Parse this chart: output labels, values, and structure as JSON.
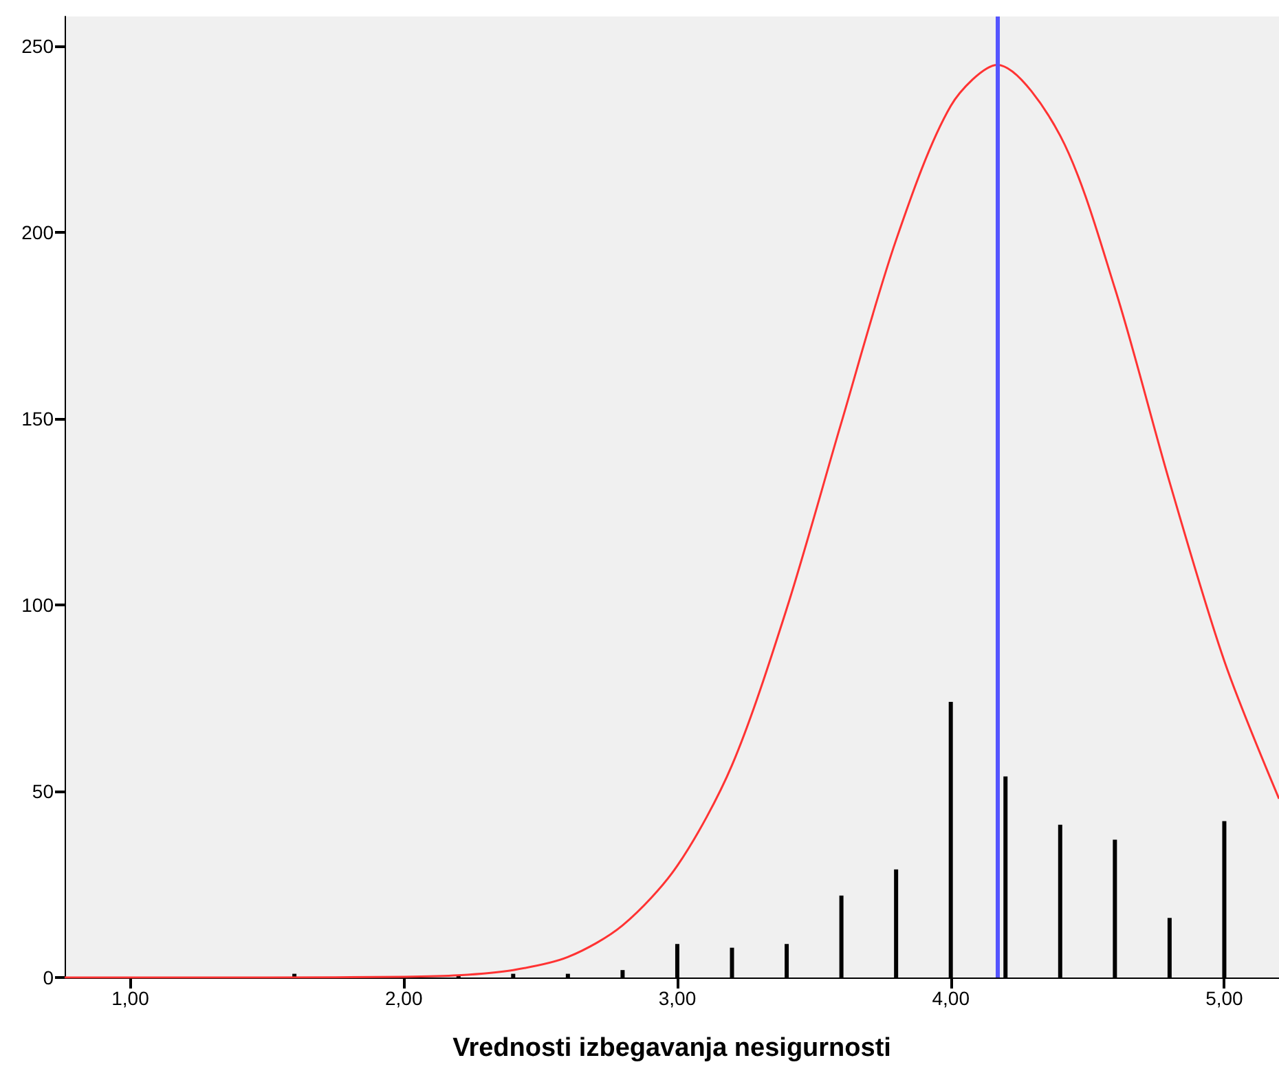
{
  "chart_data": {
    "type": "bar",
    "xlabel": "Vrednosti izbegavanja nesigurnosti",
    "x": [
      1.6,
      2.2,
      2.4,
      2.6,
      2.8,
      3.0,
      3.2,
      3.4,
      3.6,
      3.8,
      4.0,
      4.2,
      4.4,
      4.6,
      4.8,
      5.0
    ],
    "series": [
      {
        "color": "#000000",
        "values": [
          1,
          0.5,
          1,
          1,
          2,
          9,
          8,
          9,
          22,
          29,
          74,
          54,
          41,
          37,
          16,
          42
        ]
      },
      {
        "type": "line",
        "color": "#ff3333",
        "marker": "none",
        "x": [
          0.76,
          1.5,
          2.0,
          2.2,
          2.4,
          2.6,
          2.8,
          3.0,
          3.2,
          3.4,
          3.6,
          3.8,
          4.0,
          4.17,
          4.4,
          4.6,
          4.8,
          5.0,
          5.2
        ],
        "values": [
          0,
          0,
          0.2,
          0.6,
          2,
          5.5,
          14,
          30,
          57,
          99,
          149,
          198,
          234,
          245,
          226,
          185,
          133,
          85,
          48
        ]
      }
    ],
    "ref_lines": [
      {
        "axis": "x",
        "value": 4.17,
        "color": "#5555ff"
      }
    ],
    "xlim": [
      0.76,
      5.2
    ],
    "xticks": [
      {
        "value": 1,
        "label": "1,00"
      },
      {
        "value": 2,
        "label": "2,00"
      },
      {
        "value": 3,
        "label": "3,00"
      },
      {
        "value": 4,
        "label": "4,00"
      },
      {
        "value": 5,
        "label": "5,00"
      }
    ],
    "ylim": [
      0,
      258
    ],
    "yticks": [
      0,
      50,
      100,
      150,
      200,
      250
    ],
    "grid": false
  }
}
